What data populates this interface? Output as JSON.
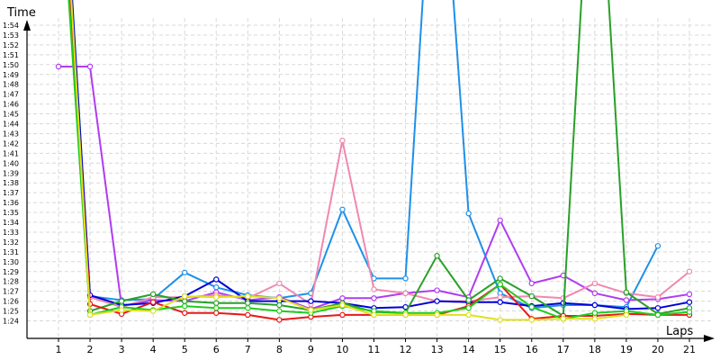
{
  "chart_data": {
    "type": "line",
    "ylabel": "Time",
    "xlabel": "Laps",
    "x": [
      1,
      2,
      3,
      4,
      5,
      6,
      7,
      8,
      9,
      10,
      11,
      12,
      13,
      14,
      15,
      16,
      17,
      18,
      19,
      20,
      21
    ],
    "ylim_seconds": [
      83,
      115
    ],
    "y_tick_values_seconds": [
      84,
      85,
      86,
      87,
      88,
      89,
      90,
      91,
      92,
      93,
      94,
      95,
      96,
      97,
      98,
      99,
      100,
      101,
      102,
      103,
      104,
      105,
      106,
      107,
      108,
      109,
      110,
      111,
      112,
      113,
      114
    ],
    "y_tick_labels": [
      "1:24",
      "1:25",
      "1:26",
      "1:27",
      "1:28",
      "1:29",
      "1:30",
      "1:31",
      "1:32",
      "1:33",
      "1:34",
      "1:35",
      "1:36",
      "1:37",
      "1:38",
      "1:39",
      "1:40",
      "1:41",
      "1:42",
      "1:43",
      "1:44",
      "1:45",
      "1:46",
      "1:47",
      "1:48",
      "1:49",
      "1:50",
      "1:51",
      "1:52",
      "1:53",
      "1:54"
    ],
    "grid": true,
    "series": [
      {
        "color": "#1e90e8",
        "values": [
          140,
          86.5,
          86.1,
          86.2,
          88.9,
          87.4,
          86.6,
          86.3,
          86.8,
          95.3,
          88.3,
          88.3,
          140,
          94.9,
          86.8,
          85.3,
          85.6,
          85.6,
          85.4,
          91.6,
          null
        ]
      },
      {
        "color": "#b03cf0",
        "values": [
          109.8,
          109.8,
          85.5,
          86.1,
          86.0,
          86.9,
          86.1,
          86.4,
          85.2,
          86.3,
          86.3,
          86.8,
          87.1,
          86.4,
          94.2,
          87.8,
          88.6,
          86.8,
          86.1,
          86.2,
          86.7
        ]
      },
      {
        "color": "#f088b0",
        "values": [
          136.0,
          86.4,
          85.4,
          86.4,
          86.4,
          86.6,
          86.3,
          87.8,
          85.7,
          102.3,
          87.2,
          86.8,
          86.0,
          86.0,
          86.4,
          86.5,
          86.3,
          87.8,
          86.8,
          86.4,
          89.0
        ]
      },
      {
        "color": "#0000d8",
        "values": [
          139.2,
          86.6,
          85.6,
          85.8,
          86.5,
          88.2,
          86.0,
          86.0,
          86.0,
          85.8,
          85.3,
          85.4,
          86.0,
          85.9,
          85.9,
          85.5,
          85.8,
          85.6,
          85.2,
          85.3,
          85.9
        ]
      },
      {
        "color": "#28a028",
        "values": [
          133.6,
          85.0,
          86.0,
          86.7,
          86.0,
          85.8,
          85.8,
          85.6,
          85.1,
          85.8,
          84.9,
          84.8,
          90.6,
          86.1,
          88.3,
          86.5,
          84.5,
          140,
          86.9,
          84.7,
          85.3
        ]
      },
      {
        "color": "#e81818",
        "values": [
          136.2,
          85.7,
          84.7,
          85.9,
          84.8,
          84.8,
          84.6,
          84.1,
          84.4,
          84.6,
          84.6,
          84.6,
          84.6,
          85.5,
          87.7,
          84.2,
          84.5,
          84.5,
          84.7,
          84.6,
          84.6
        ]
      },
      {
        "color": "#20cc20",
        "values": [
          132.0,
          84.6,
          85.4,
          85.1,
          85.5,
          85.3,
          85.3,
          85.0,
          84.8,
          85.5,
          85.0,
          84.8,
          84.8,
          85.3,
          87.7,
          85.4,
          84.2,
          84.8,
          85.0,
          84.6,
          84.9
        ]
      },
      {
        "color": "#e0e020",
        "values": [
          138.5,
          84.6,
          85.1,
          85.0,
          86.5,
          86.4,
          86.5,
          86.3,
          85.1,
          85.6,
          84.6,
          84.6,
          84.6,
          84.6,
          84.1,
          84.1,
          84.2,
          84.2,
          84.6,
          null,
          null
        ]
      }
    ]
  }
}
